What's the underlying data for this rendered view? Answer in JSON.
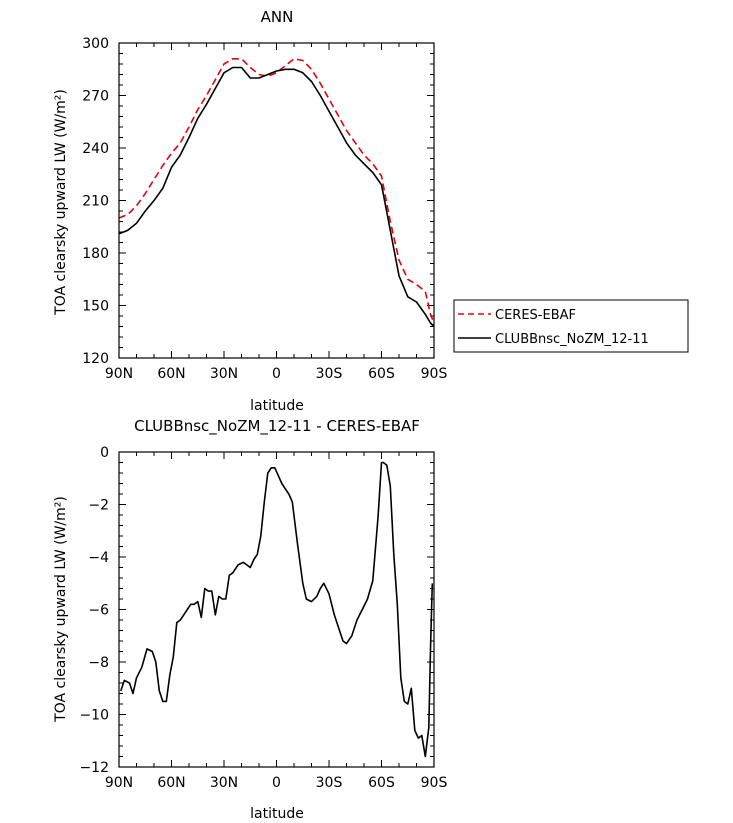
{
  "chart_data": [
    {
      "type": "line",
      "title": "ANN",
      "xlabel": "latitude",
      "ylabel": "TOA clearsky upward LW (W/m²)",
      "ylim": [
        120,
        300
      ],
      "xlim": [
        90,
        -90
      ],
      "x_tick_values": [
        90,
        60,
        30,
        0,
        -30,
        -60,
        -90
      ],
      "x_tick_labels": [
        "90N",
        "60N",
        "30N",
        "0",
        "30S",
        "60S",
        "90S"
      ],
      "y_tick_values": [
        120,
        150,
        180,
        210,
        240,
        270,
        300
      ],
      "y_tick_labels": [
        "120",
        "150",
        "180",
        "210",
        "240",
        "270",
        "300"
      ],
      "legend_position": "outside-right",
      "series": [
        {
          "name": "CERES-EBAF",
          "color": "#e8000b",
          "dash": true,
          "x": [
            90,
            85,
            80,
            75,
            70,
            65,
            60,
            55,
            50,
            45,
            40,
            35,
            30,
            25,
            20,
            15,
            10,
            5,
            0,
            -5,
            -10,
            -15,
            -20,
            -25,
            -30,
            -35,
            -40,
            -45,
            -50,
            -55,
            -60,
            -65,
            -70,
            -75,
            -80,
            -85,
            -88,
            -90
          ],
          "y": [
            200,
            202,
            207,
            214,
            222,
            230,
            237,
            243,
            252,
            262,
            270,
            279,
            288,
            291,
            291,
            286,
            282,
            281,
            283,
            287,
            291,
            290,
            285,
            277,
            268,
            259,
            250,
            243,
            236,
            231,
            224,
            198,
            176,
            165,
            162,
            158,
            145,
            140
          ]
        },
        {
          "name": "CLUBBnsc_NoZM_12-11",
          "color": "#000000",
          "dash": false,
          "x": [
            90,
            85,
            80,
            75,
            70,
            65,
            60,
            55,
            50,
            45,
            40,
            35,
            30,
            25,
            20,
            15,
            10,
            5,
            0,
            -5,
            -10,
            -15,
            -20,
            -25,
            -30,
            -35,
            -40,
            -45,
            -50,
            -55,
            -60,
            -65,
            -70,
            -75,
            -80,
            -85,
            -88,
            -90
          ],
          "y": [
            191,
            193,
            197,
            204,
            210,
            217,
            229,
            236,
            246,
            257,
            265,
            274,
            283,
            286,
            286,
            280,
            280,
            282,
            284,
            285,
            285,
            283,
            278,
            270,
            261,
            252,
            243,
            236,
            231,
            226,
            219,
            193,
            167,
            155,
            152,
            145,
            140,
            138
          ]
        }
      ]
    },
    {
      "type": "line",
      "title": "CLUBBnsc_NoZM_12-11 - CERES-EBAF",
      "xlabel": "latitude",
      "ylabel": "TOA clearsky upward LW (W/m²)",
      "ylim": [
        -12,
        0
      ],
      "xlim": [
        90,
        -90
      ],
      "x_tick_values": [
        90,
        60,
        30,
        0,
        -30,
        -60,
        -90
      ],
      "x_tick_labels": [
        "90N",
        "60N",
        "30N",
        "0",
        "30S",
        "60S",
        "90S"
      ],
      "y_tick_values": [
        -12,
        -10,
        -8,
        -6,
        -4,
        -2,
        0
      ],
      "y_tick_labels": [
        "−12",
        "−10",
        "−8",
        "−6",
        "−4",
        "−2",
        "0"
      ],
      "series": [
        {
          "color": "#000000",
          "dash": false,
          "x": [
            89,
            87,
            84,
            82,
            80,
            77,
            74,
            71,
            69,
            67,
            65,
            63,
            61,
            59,
            57,
            55,
            53,
            51,
            49,
            47,
            45,
            43,
            41,
            39,
            37,
            35,
            33,
            31,
            29,
            27,
            25,
            22,
            19,
            17,
            15,
            13,
            11,
            9,
            7,
            5,
            3,
            1,
            -1,
            -3,
            -5,
            -7,
            -9,
            -12,
            -15,
            -17,
            -20,
            -23,
            -25,
            -27,
            -30,
            -33,
            -36,
            -38,
            -40,
            -43,
            -46,
            -49,
            -52,
            -55,
            -58,
            -60,
            -61,
            -63,
            -65,
            -67,
            -69,
            -71,
            -73,
            -75,
            -77,
            -79,
            -81,
            -83,
            -85,
            -87,
            -88,
            -89
          ],
          "y": [
            -9.1,
            -8.7,
            -8.8,
            -9.2,
            -8.6,
            -8.2,
            -7.5,
            -7.6,
            -8.0,
            -9.1,
            -9.5,
            -9.5,
            -8.5,
            -7.8,
            -6.5,
            -6.4,
            -6.2,
            -6.0,
            -5.8,
            -5.8,
            -5.7,
            -6.3,
            -5.2,
            -5.3,
            -5.3,
            -6.2,
            -5.5,
            -5.6,
            -5.6,
            -4.7,
            -4.6,
            -4.3,
            -4.2,
            -4.3,
            -4.4,
            -4.1,
            -3.9,
            -3.2,
            -1.9,
            -0.8,
            -0.6,
            -0.6,
            -0.9,
            -1.2,
            -1.4,
            -1.6,
            -1.9,
            -3.5,
            -5.0,
            -5.6,
            -5.7,
            -5.5,
            -5.2,
            -5.0,
            -5.4,
            -6.2,
            -6.8,
            -7.2,
            -7.3,
            -7.0,
            -6.4,
            -6.0,
            -5.6,
            -4.9,
            -2.5,
            -0.4,
            -0.4,
            -0.5,
            -1.3,
            -3.9,
            -5.8,
            -8.6,
            -9.5,
            -9.6,
            -9.0,
            -10.6,
            -10.9,
            -10.8,
            -11.6,
            -10.5,
            -7.5,
            -5.0
          ]
        }
      ]
    }
  ]
}
